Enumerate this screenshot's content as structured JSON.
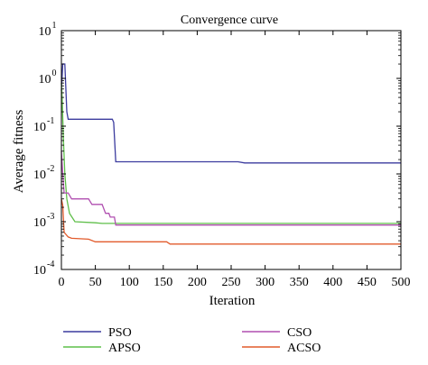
{
  "chart_data": {
    "type": "line",
    "title": "Convergence curve",
    "xlabel": "Iteration",
    "ylabel": "Average fitness",
    "xlim": [
      0,
      500
    ],
    "ylim": [
      0.0001,
      10
    ],
    "yscale": "log",
    "grid": false,
    "legend_position": "bottom",
    "x_ticks": [
      {
        "value": 0,
        "label": "0"
      },
      {
        "value": 50,
        "label": "50"
      },
      {
        "value": 100,
        "label": "100"
      },
      {
        "value": 150,
        "label": "150"
      },
      {
        "value": 200,
        "label": "200"
      },
      {
        "value": 250,
        "label": "250"
      },
      {
        "value": 300,
        "label": "300"
      },
      {
        "value": 350,
        "label": "350"
      },
      {
        "value": 400,
        "label": "400"
      },
      {
        "value": 450,
        "label": "450"
      },
      {
        "value": 500,
        "label": "500"
      }
    ],
    "y_ticks": [
      {
        "value": 10,
        "base": "10",
        "exp": "1"
      },
      {
        "value": 1,
        "base": "10",
        "exp": "0"
      },
      {
        "value": 0.1,
        "base": "10",
        "exp": "-1"
      },
      {
        "value": 0.01,
        "base": "10",
        "exp": "-2"
      },
      {
        "value": 0.001,
        "base": "10",
        "exp": "-3"
      },
      {
        "value": 0.0001,
        "base": "10",
        "exp": "-4"
      }
    ],
    "series": [
      {
        "name": "PSO",
        "color": "#3b3b9e",
        "points": [
          [
            0,
            0.55
          ],
          [
            2,
            2.0
          ],
          [
            5,
            2.0
          ],
          [
            8,
            0.2
          ],
          [
            10,
            0.14
          ],
          [
            60,
            0.14
          ],
          [
            75,
            0.14
          ],
          [
            77,
            0.12
          ],
          [
            80,
            0.018
          ],
          [
            260,
            0.018
          ],
          [
            270,
            0.017
          ],
          [
            500,
            0.017
          ]
        ]
      },
      {
        "name": "APSO",
        "color": "#5fbf4a",
        "points": [
          [
            0,
            0.8
          ],
          [
            1,
            0.4
          ],
          [
            3,
            0.05
          ],
          [
            5,
            0.01
          ],
          [
            8,
            0.003
          ],
          [
            12,
            0.0015
          ],
          [
            20,
            0.001
          ],
          [
            50,
            0.00095
          ],
          [
            60,
            0.00092
          ],
          [
            500,
            0.00092
          ]
        ]
      },
      {
        "name": "CSO",
        "color": "#b04fb0",
        "points": [
          [
            0,
            0.03
          ],
          [
            2,
            0.01
          ],
          [
            4,
            0.004
          ],
          [
            10,
            0.004
          ],
          [
            15,
            0.003
          ],
          [
            40,
            0.003
          ],
          [
            45,
            0.0023
          ],
          [
            60,
            0.0023
          ],
          [
            65,
            0.0015
          ],
          [
            70,
            0.0015
          ],
          [
            72,
            0.00125
          ],
          [
            78,
            0.00125
          ],
          [
            80,
            0.00085
          ],
          [
            500,
            0.00085
          ]
        ]
      },
      {
        "name": "ACSO",
        "color": "#e25b2c",
        "points": [
          [
            0,
            0.003
          ],
          [
            2,
            0.0022
          ],
          [
            4,
            0.0006
          ],
          [
            10,
            0.00048
          ],
          [
            15,
            0.00045
          ],
          [
            40,
            0.00043
          ],
          [
            50,
            0.00038
          ],
          [
            155,
            0.00038
          ],
          [
            160,
            0.00034
          ],
          [
            500,
            0.00034
          ]
        ]
      }
    ]
  }
}
